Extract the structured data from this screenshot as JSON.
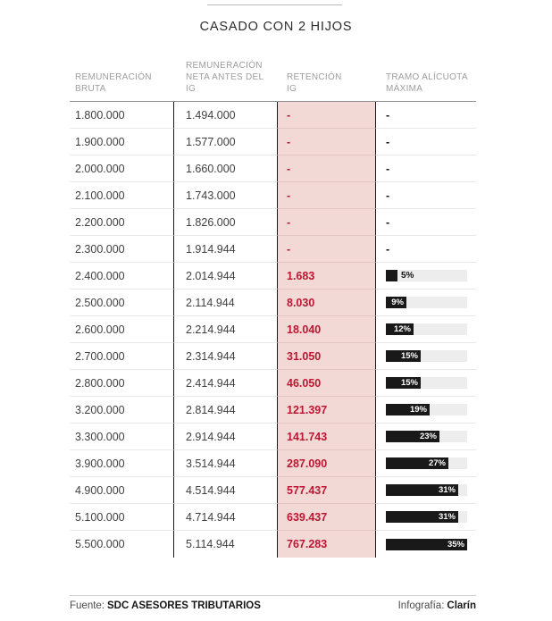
{
  "title": "CASADO CON 2 HIJOS",
  "table": {
    "headers": [
      "REMUNERACIÓN\nBRUTA",
      "REMUNERACIÓN\nNETA ANTES DEL\nIG",
      "RETENCIÓN\nIG",
      "TRAMO ALÍCUOTA\nMÁXIMA"
    ],
    "empty_value": "-",
    "bar_scale": {
      "full_pct": 35
    },
    "rows": [
      {
        "bruta": "1.800.000",
        "neta": "1.494.000",
        "retencion": "-",
        "tramo_pct": null,
        "tramo_label": "-"
      },
      {
        "bruta": "1.900.000",
        "neta": "1.577.000",
        "retencion": "-",
        "tramo_pct": null,
        "tramo_label": "-"
      },
      {
        "bruta": "2.000.000",
        "neta": "1.660.000",
        "retencion": "-",
        "tramo_pct": null,
        "tramo_label": "-"
      },
      {
        "bruta": "2.100.000",
        "neta": "1.743.000",
        "retencion": "-",
        "tramo_pct": null,
        "tramo_label": "-"
      },
      {
        "bruta": "2.200.000",
        "neta": "1.826.000",
        "retencion": "-",
        "tramo_pct": null,
        "tramo_label": "-"
      },
      {
        "bruta": "2.300.000",
        "neta": "1.914.944",
        "retencion": "-",
        "tramo_pct": null,
        "tramo_label": "-"
      },
      {
        "bruta": "2.400.000",
        "neta": "2.014.944",
        "retencion": "1.683",
        "tramo_pct": 5,
        "tramo_label": "5%"
      },
      {
        "bruta": "2.500.000",
        "neta": "2.114.944",
        "retencion": "8.030",
        "tramo_pct": 9,
        "tramo_label": "9%"
      },
      {
        "bruta": "2.600.000",
        "neta": "2.214.944",
        "retencion": "18.040",
        "tramo_pct": 12,
        "tramo_label": "12%"
      },
      {
        "bruta": "2.700.000",
        "neta": "2.314.944",
        "retencion": "31.050",
        "tramo_pct": 15,
        "tramo_label": "15%"
      },
      {
        "bruta": "2.800.000",
        "neta": "2.414.944",
        "retencion": "46.050",
        "tramo_pct": 15,
        "tramo_label": "15%"
      },
      {
        "bruta": "3.200.000",
        "neta": "2.814.944",
        "retencion": "121.397",
        "tramo_pct": 19,
        "tramo_label": "19%"
      },
      {
        "bruta": "3.300.000",
        "neta": "2.914.944",
        "retencion": "141.743",
        "tramo_pct": 23,
        "tramo_label": "23%"
      },
      {
        "bruta": "3.900.000",
        "neta": "3.514.944",
        "retencion": "287.090",
        "tramo_pct": 27,
        "tramo_label": "27%"
      },
      {
        "bruta": "4.900.000",
        "neta": "4.514.944",
        "retencion": "577.437",
        "tramo_pct": 31,
        "tramo_label": "31%"
      },
      {
        "bruta": "5.100.000",
        "neta": "4.714.944",
        "retencion": "639.437",
        "tramo_pct": 31,
        "tramo_label": "31%"
      },
      {
        "bruta": "5.500.000",
        "neta": "5.114.944",
        "retencion": "767.283",
        "tramo_pct": 35,
        "tramo_label": "35%"
      }
    ]
  },
  "footer": {
    "source_prefix": "Fuente:",
    "source": "SDC ASESORES TRIBUTARIOS",
    "credit_prefix": "Infografía:",
    "credit": "Clarín"
  },
  "colors": {
    "accent_red": "#bb1733",
    "highlight_pink": "#f2d9d5",
    "bar_black": "#191919",
    "bar_track": "#ededed"
  },
  "chart_data": {
    "type": "table",
    "title": "CASADO CON 2 HIJOS",
    "columns": [
      "REMUNERACIÓN BRUTA",
      "REMUNERACIÓN NETA ANTES DEL IG",
      "RETENCIÓN IG",
      "TRAMO ALÍCUOTA MÁXIMA (%)"
    ],
    "rows": [
      [
        1800000,
        1494000,
        null,
        null
      ],
      [
        1900000,
        1577000,
        null,
        null
      ],
      [
        2000000,
        1660000,
        null,
        null
      ],
      [
        2100000,
        1743000,
        null,
        null
      ],
      [
        2200000,
        1826000,
        null,
        null
      ],
      [
        2300000,
        1914944,
        null,
        null
      ],
      [
        2400000,
        2014944,
        1683,
        5
      ],
      [
        2500000,
        2114944,
        8030,
        9
      ],
      [
        2600000,
        2214944,
        18040,
        12
      ],
      [
        2700000,
        2314944,
        31050,
        15
      ],
      [
        2800000,
        2414944,
        46050,
        15
      ],
      [
        3200000,
        2814944,
        121397,
        19
      ],
      [
        3300000,
        2914944,
        141743,
        23
      ],
      [
        3900000,
        3514944,
        287090,
        27
      ],
      [
        4900000,
        4514944,
        577437,
        31
      ],
      [
        5100000,
        4714944,
        639437,
        31
      ],
      [
        5500000,
        5114944,
        767283,
        35
      ]
    ],
    "bar_column": "TRAMO ALÍCUOTA MÁXIMA (%)",
    "bar_range": [
      0,
      35
    ],
    "legend_position": "none",
    "grid": false
  }
}
